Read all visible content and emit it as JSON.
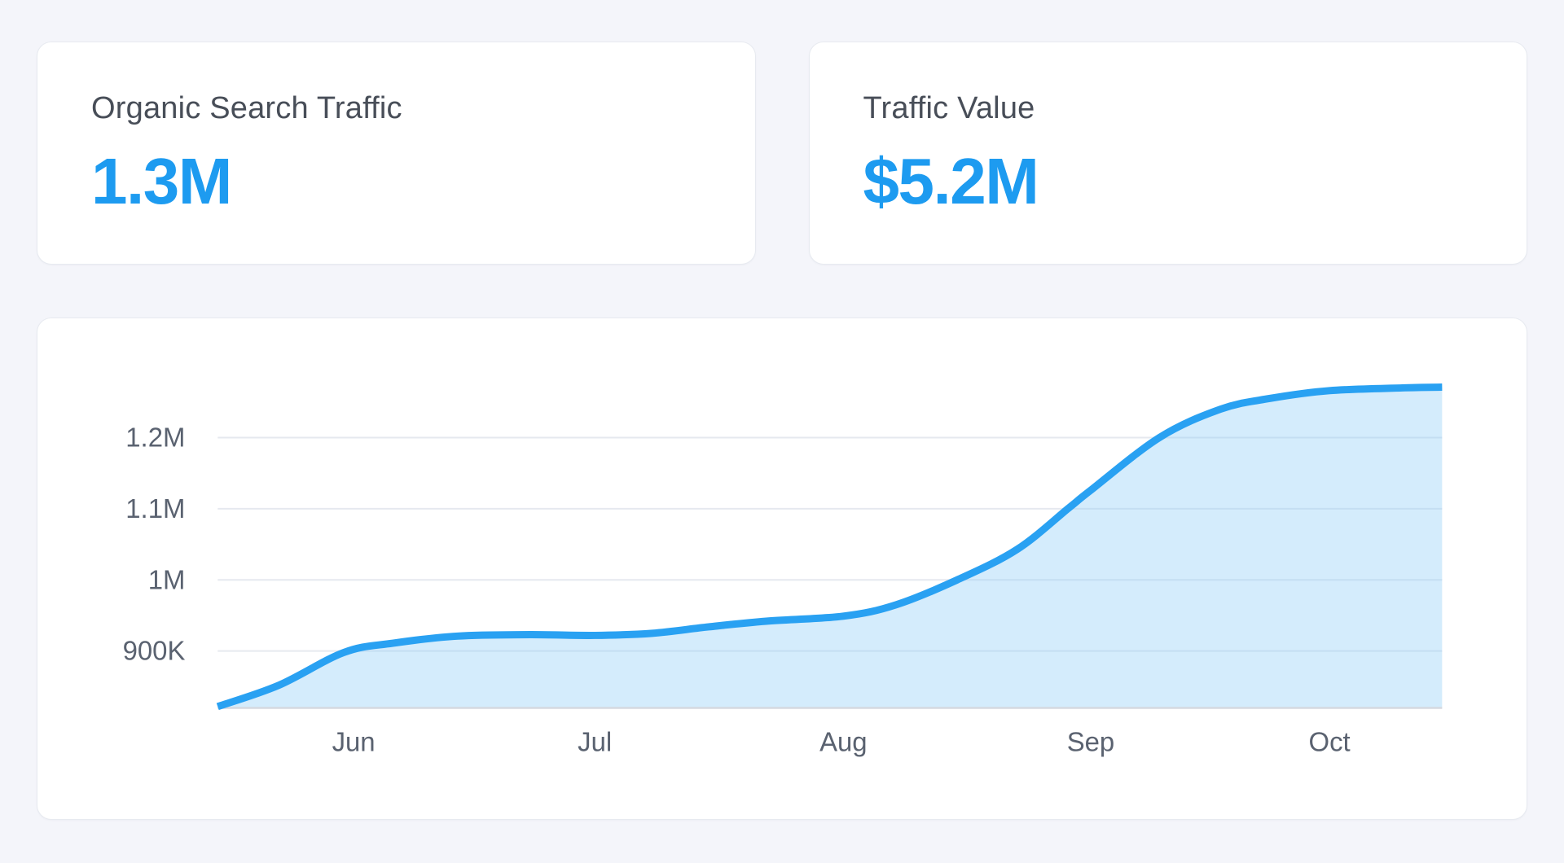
{
  "colors": {
    "page_bg": "#f4f5fa",
    "card_bg": "#ffffff",
    "card_border": "#e7eaf0",
    "accent_blue": "#1d9bf0",
    "stat_label_text": "#484e58",
    "chart_line": "#29a1f2",
    "chart_fill": "rgba(141,205,247,0.38)",
    "grid_line": "#e6e9ef",
    "baseline": "#d5d9e0",
    "axis_text": "#5a6270"
  },
  "stats": [
    {
      "label": "Organic Search Traffic",
      "value": "1.3M"
    },
    {
      "label": "Traffic Value",
      "value": "$5.2M"
    }
  ],
  "chart_data": {
    "type": "area",
    "title": "",
    "series_name": "Organic Search Traffic",
    "xlabel": "",
    "ylabel": "",
    "unit": "visits (thousands)",
    "legend": "none",
    "grid": "horizontal",
    "x_ticks": [
      {
        "label": "Jun",
        "t": 0.111
      },
      {
        "label": "Jul",
        "t": 0.308
      },
      {
        "label": "Aug",
        "t": 0.511
      },
      {
        "label": "Sep",
        "t": 0.713
      },
      {
        "label": "Oct",
        "t": 0.908
      }
    ],
    "y_ticks": [
      {
        "label": "900K",
        "value": 900
      },
      {
        "label": "1M",
        "value": 1000
      },
      {
        "label": "1.1M",
        "value": 1100
      },
      {
        "label": "1.2M",
        "value": 1200
      }
    ],
    "y_range_visible": [
      820,
      1271
    ],
    "points": [
      {
        "t": 0.0,
        "value": 822
      },
      {
        "t": 0.05,
        "value": 852
      },
      {
        "t": 0.103,
        "value": 898
      },
      {
        "t": 0.143,
        "value": 911
      },
      {
        "t": 0.196,
        "value": 921
      },
      {
        "t": 0.255,
        "value": 923
      },
      {
        "t": 0.308,
        "value": 922
      },
      {
        "t": 0.355,
        "value": 925
      },
      {
        "t": 0.401,
        "value": 934
      },
      {
        "t": 0.448,
        "value": 942
      },
      {
        "t": 0.511,
        "value": 949
      },
      {
        "t": 0.554,
        "value": 965
      },
      {
        "t": 0.604,
        "value": 1000
      },
      {
        "t": 0.653,
        "value": 1043
      },
      {
        "t": 0.695,
        "value": 1101
      },
      {
        "t": 0.713,
        "value": 1126
      },
      {
        "t": 0.769,
        "value": 1200
      },
      {
        "t": 0.819,
        "value": 1240
      },
      {
        "t": 0.859,
        "value": 1255
      },
      {
        "t": 0.908,
        "value": 1266
      },
      {
        "t": 0.97,
        "value": 1270
      },
      {
        "t": 1.0,
        "value": 1271
      }
    ]
  }
}
